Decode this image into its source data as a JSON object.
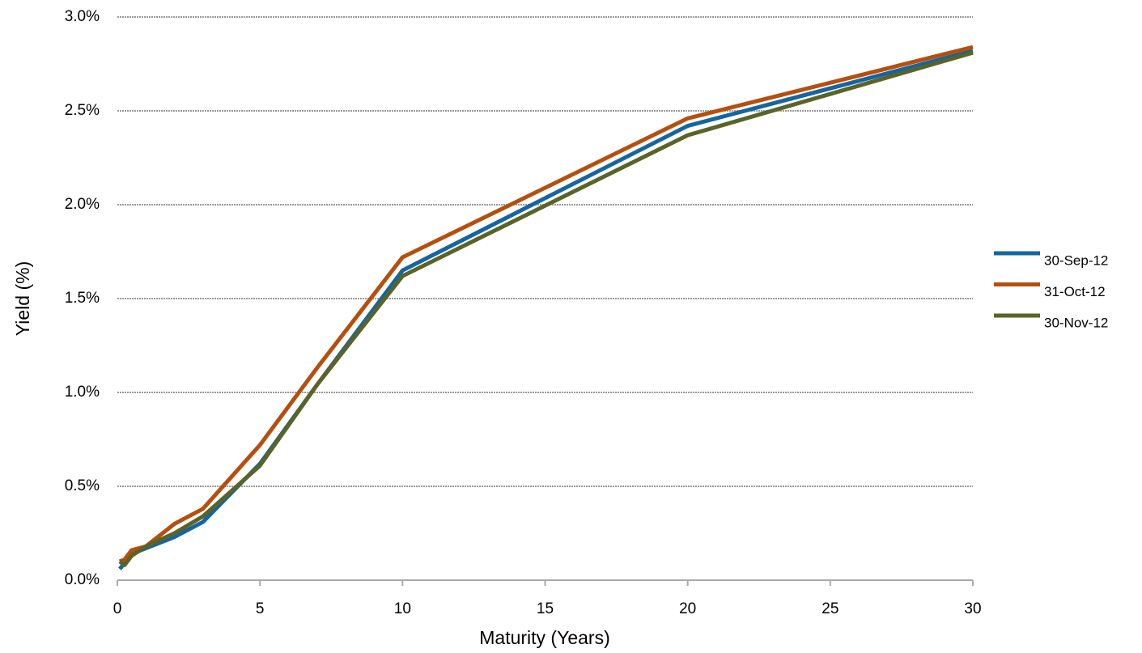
{
  "chart_data": {
    "type": "line",
    "x_label": "Maturity (Years)",
    "y_label": "Yield (%)",
    "x": [
      0.083,
      0.25,
      0.5,
      1,
      2,
      3,
      5,
      7,
      10,
      20,
      30
    ],
    "series": [
      {
        "name": "30-Sep-12",
        "color": "#1565a0",
        "values": [
          0.06,
          0.09,
          0.14,
          0.17,
          0.23,
          0.31,
          0.62,
          1.04,
          1.65,
          2.42,
          2.82
        ]
      },
      {
        "name": "31-Oct-12",
        "color": "#b4500f",
        "values": [
          0.1,
          0.11,
          0.16,
          0.18,
          0.3,
          0.38,
          0.72,
          1.13,
          1.72,
          2.46,
          2.84
        ]
      },
      {
        "name": "30-Nov-12",
        "color": "#5a6328",
        "values": [
          0.1,
          0.08,
          0.13,
          0.18,
          0.25,
          0.34,
          0.61,
          1.04,
          1.62,
          2.37,
          2.81
        ]
      }
    ],
    "xlim": [
      0,
      30
    ],
    "xticks": [
      0,
      5,
      10,
      15,
      20,
      25,
      30
    ],
    "ylim": [
      0,
      3
    ],
    "yticks": [
      {
        "value": 0,
        "label": "0.0%"
      },
      {
        "value": 0.5,
        "label": "0.5%"
      },
      {
        "value": 1,
        "label": "1.0%"
      },
      {
        "value": 1.5,
        "label": "1.5%"
      },
      {
        "value": 2,
        "label": "2.0%"
      },
      {
        "value": 2.5,
        "label": "2.5%"
      },
      {
        "value": 3,
        "label": "3.0%"
      }
    ],
    "grid": true,
    "legend": "right"
  }
}
